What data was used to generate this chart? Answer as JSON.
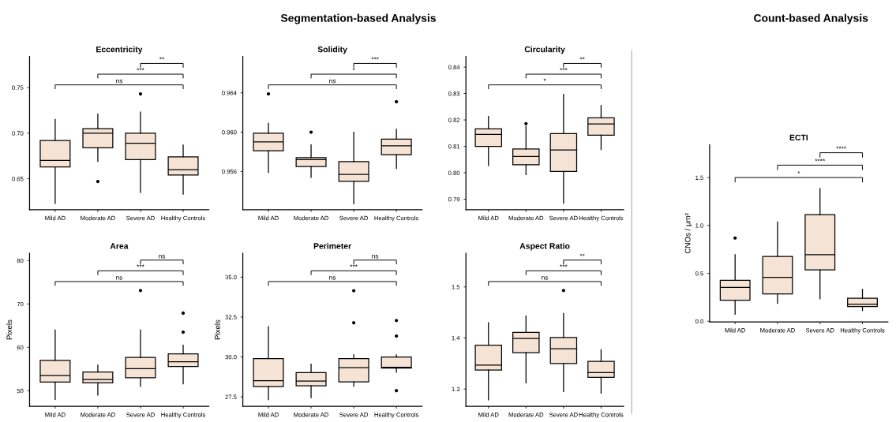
{
  "chart_data": [
    {
      "type": "box",
      "title": "Eccentricity",
      "categories": [
        "Mild AD",
        "Moderate AD",
        "Severe AD",
        "Healthy Controls"
      ],
      "color": "#f5e3d5",
      "ylim": [
        0.616,
        0.784
      ],
      "yticks": [
        {
          "value": 0.65,
          "label": "0.65"
        },
        {
          "value": 0.7,
          "label": "0.70"
        },
        {
          "value": 0.75,
          "label": "0.75"
        }
      ],
      "boxes": [
        {
          "low": 0.623,
          "q1": 0.663,
          "median": 0.67,
          "q3": 0.692,
          "high": 0.715
        },
        {
          "low": 0.669,
          "q1": 0.684,
          "median": 0.7,
          "q3": 0.705,
          "high": 0.721,
          "outliers": [
            0.647
          ]
        },
        {
          "low": 0.635,
          "q1": 0.671,
          "median": 0.689,
          "q3": 0.7,
          "high": 0.723,
          "outliers": [
            0.743
          ]
        },
        {
          "low": 0.633,
          "q1": 0.654,
          "median": 0.66,
          "q3": 0.674,
          "high": 0.687
        }
      ],
      "annotations": [
        "Segmentation-based Analysis",
        "ns",
        "***",
        "**"
      ]
    },
    {
      "type": "box",
      "title": "Solidity",
      "categories": [
        "Mild AD",
        "Moderate AD",
        "Severe AD",
        "Healthy Controls"
      ],
      "color": "#f5e3d5",
      "ylim": [
        0.9521,
        0.9677
      ],
      "yticks": [
        {
          "value": 0.956,
          "label": "0.956"
        },
        {
          "value": 0.96,
          "label": "0.960"
        },
        {
          "value": 0.964,
          "label": "0.964"
        }
      ],
      "boxes": [
        {
          "low": 0.9559,
          "q1": 0.9581,
          "median": 0.959,
          "q3": 0.9599,
          "high": 0.9609,
          "outliers": [
            0.9639
          ]
        },
        {
          "low": 0.9554,
          "q1": 0.9565,
          "median": 0.9572,
          "q3": 0.9574,
          "high": 0.9587,
          "outliers": [
            0.96
          ]
        },
        {
          "low": 0.9527,
          "q1": 0.955,
          "median": 0.9557,
          "q3": 0.957,
          "high": 0.96
        },
        {
          "low": 0.9563,
          "q1": 0.9577,
          "median": 0.9586,
          "q3": 0.9593,
          "high": 0.9603,
          "outliers": [
            0.9631
          ]
        }
      ],
      "annotations": [
        "ns",
        "*",
        "***"
      ]
    },
    {
      "type": "box",
      "title": "Circularity",
      "categories": [
        "Mild AD",
        "Moderate AD",
        "Severe AD",
        "Healthy Controls"
      ],
      "color": "#f5e3d5",
      "ylim": [
        0.786,
        0.844
      ],
      "yticks": [
        {
          "value": 0.79,
          "label": "0.79"
        },
        {
          "value": 0.8,
          "label": "0.80"
        },
        {
          "value": 0.81,
          "label": "0.81"
        },
        {
          "value": 0.82,
          "label": "0.82"
        },
        {
          "value": 0.83,
          "label": "0.83"
        },
        {
          "value": 0.84,
          "label": "0.84"
        }
      ],
      "boxes": [
        {
          "low": 0.8027,
          "q1": 0.81,
          "median": 0.8145,
          "q3": 0.8166,
          "high": 0.8213
        },
        {
          "low": 0.7993,
          "q1": 0.803,
          "median": 0.8062,
          "q3": 0.809,
          "high": 0.8175,
          "outliers": [
            0.8186
          ]
        },
        {
          "low": 0.7885,
          "q1": 0.8005,
          "median": 0.8086,
          "q3": 0.8148,
          "high": 0.8297
        },
        {
          "low": 0.8088,
          "q1": 0.8142,
          "median": 0.8185,
          "q3": 0.8208,
          "high": 0.8254
        }
      ],
      "annotations": [
        "*",
        "***",
        "**"
      ]
    },
    {
      "type": "box",
      "title": "Area",
      "ylabel": "Pixels",
      "categories": [
        "Mild AD",
        "Moderate AD",
        "Severe AD",
        "Healthy Controls"
      ],
      "color": "#f5e3d5",
      "ylim": [
        46.4,
        81.7
      ],
      "yticks": [
        50,
        60,
        70,
        80
      ],
      "boxes": [
        {
          "low": 48.0,
          "q1": 52.0,
          "median": 53.5,
          "q3": 57.0,
          "high": 64.0
        },
        {
          "low": 49.0,
          "q1": 51.8,
          "median": 52.6,
          "q3": 54.3,
          "high": 55.9
        },
        {
          "low": 51.0,
          "q1": 53.0,
          "median": 55.1,
          "q3": 57.7,
          "high": 64.0,
          "outliers": [
            73.1
          ]
        },
        {
          "low": 51.6,
          "q1": 55.6,
          "median": 56.7,
          "q3": 58.5,
          "high": 60.5,
          "outliers": [
            63.5,
            67.9
          ]
        }
      ],
      "annotations": [
        "ns",
        "***",
        "ns"
      ]
    },
    {
      "type": "box",
      "title": "Perimeter",
      "ylabel": "Pixels",
      "categories": [
        "Mild AD",
        "Moderate AD",
        "Severe AD",
        "Healthy Controls"
      ],
      "color": "#f5e3d5",
      "ylim": [
        26.9,
        36.5
      ],
      "yticks": [
        {
          "value": 27.5,
          "label": "27.5"
        },
        {
          "value": 30,
          "label": "30.0"
        },
        {
          "value": 32.5,
          "label": "32.5"
        },
        {
          "value": 35,
          "label": "35.0"
        }
      ],
      "boxes": [
        {
          "low": 27.33,
          "q1": 28.14,
          "median": 28.51,
          "q3": 29.9,
          "high": 31.9
        },
        {
          "low": 27.45,
          "q1": 28.19,
          "median": 28.49,
          "q3": 29.02,
          "high": 29.55
        },
        {
          "low": 28.16,
          "q1": 28.44,
          "median": 29.32,
          "q3": 29.9,
          "high": 30.13,
          "outliers": [
            32.14,
            34.15
          ]
        },
        {
          "low": 29.04,
          "q1": 29.3,
          "median": 29.35,
          "q3": 29.99,
          "high": 30.13,
          "outliers": [
            27.89,
            31.31,
            32.28
          ]
        }
      ],
      "annotations": [
        "ns",
        "***",
        "ns"
      ]
    },
    {
      "type": "box",
      "title": "Aspect Ratio",
      "categories": [
        "Mild AD",
        "Moderate AD",
        "Severe AD",
        "Healthy Controls"
      ],
      "color": "#f5e3d5",
      "ylim": [
        1.266,
        1.566
      ],
      "yticks": [
        {
          "value": 1.3,
          "label": "1.3"
        },
        {
          "value": 1.4,
          "label": "1.4"
        },
        {
          "value": 1.5,
          "label": "1.5"
        }
      ],
      "boxes": [
        {
          "low": 1.279,
          "q1": 1.337,
          "median": 1.347,
          "q3": 1.386,
          "high": 1.43
        },
        {
          "low": 1.312,
          "q1": 1.371,
          "median": 1.399,
          "q3": 1.411,
          "high": 1.443
        },
        {
          "low": 1.295,
          "q1": 1.35,
          "median": 1.379,
          "q3": 1.401,
          "high": 1.448,
          "outliers": [
            1.493
          ]
        },
        {
          "low": 1.292,
          "q1": 1.323,
          "median": 1.332,
          "q3": 1.354,
          "high": 1.377
        }
      ],
      "annotations": [
        "ns",
        "***",
        "**"
      ]
    },
    {
      "type": "box",
      "title": "ECTI",
      "ylabel": "CNOs / μm²",
      "categories": [
        "Mild AD",
        "Moderate AD",
        "Severe AD",
        "Healthy Controls"
      ],
      "color": "#f5e3d5",
      "ylim": [
        -0.008,
        1.843
      ],
      "yticks": [
        {
          "value": 0,
          "label": "0.0"
        },
        {
          "value": 0.5,
          "label": "0.5"
        },
        {
          "value": 1,
          "label": "1.0"
        },
        {
          "value": 1.5,
          "label": "1.5"
        }
      ],
      "boxes": [
        {
          "low": 0.074,
          "q1": 0.219,
          "median": 0.354,
          "q3": 0.428,
          "high": 0.694,
          "outliers": [
            0.869
          ]
        },
        {
          "low": 0.186,
          "q1": 0.285,
          "median": 0.458,
          "q3": 0.677,
          "high": 1.036
        },
        {
          "low": 0.233,
          "q1": 0.537,
          "median": 0.694,
          "q3": 1.113,
          "high": 1.385
        },
        {
          "low": 0.112,
          "q1": 0.154,
          "median": 0.178,
          "q3": 0.239,
          "high": 0.332
        }
      ],
      "annotations": [
        "Count-based Analysis",
        "*",
        "****",
        "****"
      ]
    }
  ]
}
